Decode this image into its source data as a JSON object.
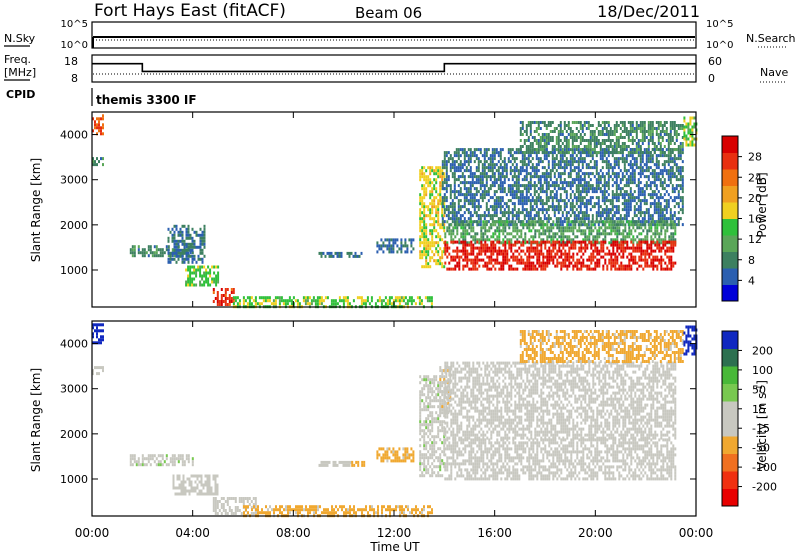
{
  "header": {
    "station": "Fort Hays East (fitACF)",
    "beam": "Beam 06",
    "date": "18/Dec/2011"
  },
  "top_panel": {
    "left_label": "N.Sky",
    "right_label": "N.Search",
    "left_ticks": [
      "10^5",
      "10^0"
    ],
    "right_ticks": [
      "10^5",
      "10^0"
    ]
  },
  "freq_panel": {
    "left_label_1": "Freq.",
    "left_label_2": "[MHz]",
    "right_label": "Nave",
    "left_ticks": [
      "18",
      "8"
    ],
    "right_ticks": [
      "60",
      "0"
    ],
    "freq_steps": [
      {
        "from_h": 0.0,
        "to_h": 2.0,
        "mhz": 15.5
      },
      {
        "from_h": 2.0,
        "to_h": 14.0,
        "mhz": 11.5
      },
      {
        "from_h": 14.0,
        "to_h": 24.0,
        "mhz": 15.5
      }
    ],
    "nave_level": 8
  },
  "cpid": {
    "label": "CPID",
    "program": "themis 3300 IF"
  },
  "x_axis": {
    "label": "Time UT",
    "ticks": [
      "00:00",
      "04:00",
      "08:00",
      "12:00",
      "16:00",
      "20:00",
      "00:00"
    ],
    "range_h": [
      0,
      24
    ]
  },
  "chart_data": [
    {
      "type": "heatmap",
      "name": "power",
      "ylabel": "Slant Range [km]",
      "yticks": [
        "4000",
        "3000",
        "2000",
        "1000"
      ],
      "ylim": [
        180,
        4500
      ],
      "colorbar": {
        "label": "Power [dB]",
        "ticks": [
          "28",
          "24",
          "20",
          "16",
          "12",
          "8",
          "4"
        ],
        "range": [
          0,
          30
        ],
        "colors": [
          "#0000d8",
          "#2b5fb0",
          "#3d8060",
          "#5aa658",
          "#2fc03a",
          "#f0d020",
          "#f0a020",
          "#f07010",
          "#e83010",
          "#d80000"
        ]
      },
      "regions": [
        {
          "t0": 0.0,
          "t1": 0.4,
          "r0": 4000,
          "r1": 4450,
          "v": 24
        },
        {
          "t0": 0.0,
          "t1": 0.4,
          "r0": 3350,
          "r1": 3500,
          "v": 8
        },
        {
          "t0": 1.5,
          "t1": 4.0,
          "r0": 1300,
          "r1": 1550,
          "v": 8
        },
        {
          "t0": 3.0,
          "t1": 4.5,
          "r0": 1200,
          "r1": 2000,
          "v": 6
        },
        {
          "t0": 3.7,
          "t1": 5.0,
          "r0": 700,
          "r1": 1100,
          "v": 14
        },
        {
          "t0": 4.8,
          "t1": 5.6,
          "r0": 250,
          "r1": 600,
          "v": 26
        },
        {
          "t0": 5.6,
          "t1": 13.5,
          "r0": 220,
          "r1": 420,
          "v": 14
        },
        {
          "t0": 9.0,
          "t1": 10.7,
          "r0": 1280,
          "r1": 1400,
          "v": 6
        },
        {
          "t0": 11.3,
          "t1": 12.8,
          "r0": 1400,
          "r1": 1700,
          "v": 6
        },
        {
          "t0": 13.0,
          "t1": 14.0,
          "r0": 1100,
          "r1": 3300,
          "v": 16
        },
        {
          "t0": 13.9,
          "t1": 23.5,
          "r0": 2000,
          "r1": 3700,
          "v": 6
        },
        {
          "t0": 14.0,
          "t1": 23.2,
          "r0": 1600,
          "r1": 2100,
          "v": 10
        },
        {
          "t0": 14.0,
          "t1": 23.2,
          "r0": 1050,
          "r1": 1650,
          "v": 27
        },
        {
          "t0": 17.0,
          "t1": 23.5,
          "r0": 3600,
          "r1": 4300,
          "v": 8
        },
        {
          "t0": 23.5,
          "t1": 24.0,
          "r0": 3800,
          "r1": 4400,
          "v": 14
        }
      ]
    },
    {
      "type": "heatmap",
      "name": "velocity",
      "ylabel": "Slant Range [km]",
      "yticks": [
        "4000",
        "3000",
        "2000",
        "1000"
      ],
      "ylim": [
        180,
        4500
      ],
      "colorbar": {
        "label": "Velocity [m s^-1]",
        "ticks": [
          "200",
          "100",
          "50",
          "15",
          "-15",
          "-50",
          "-100",
          "-200"
        ],
        "range": [
          -250,
          250
        ],
        "colors": [
          "#e80000",
          "#f03010",
          "#f07020",
          "#f0a830",
          "#c8c8c0",
          "#c8c8c0",
          "#78c850",
          "#48b838",
          "#2c7050",
          "#1028c0"
        ]
      },
      "ground_scatter_color": "#c8c8c0",
      "regions": [
        {
          "t0": 0.0,
          "t1": 0.4,
          "r0": 4000,
          "r1": 4450,
          "v": 220
        },
        {
          "t0": 0.0,
          "t1": 0.4,
          "r0": 3350,
          "r1": 3500,
          "v": 0
        },
        {
          "t0": 1.5,
          "t1": 4.0,
          "r0": 1300,
          "r1": 1550,
          "v": 40
        },
        {
          "t0": 3.2,
          "t1": 5.0,
          "r0": 700,
          "r1": 1100,
          "v": 0
        },
        {
          "t0": 4.8,
          "t1": 6.5,
          "r0": 250,
          "r1": 600,
          "v": 30
        },
        {
          "t0": 6.0,
          "t1": 13.5,
          "r0": 220,
          "r1": 420,
          "v": -60
        },
        {
          "t0": 9.0,
          "t1": 10.3,
          "r0": 1280,
          "r1": 1400,
          "v": 0
        },
        {
          "t0": 10.3,
          "t1": 10.8,
          "r0": 1300,
          "r1": 1400,
          "v": -60
        },
        {
          "t0": 11.3,
          "t1": 12.8,
          "r0": 1400,
          "r1": 1700,
          "v": -60
        },
        {
          "t0": 13.0,
          "t1": 14.0,
          "r0": 1100,
          "r1": 3300,
          "v": 40
        },
        {
          "t0": 13.8,
          "t1": 14.2,
          "r0": 2500,
          "r1": 3500,
          "v": -40
        },
        {
          "t0": 14.0,
          "t1": 23.2,
          "r0": 1900,
          "r1": 3600,
          "v": 0
        },
        {
          "t0": 14.0,
          "t1": 23.2,
          "r0": 1000,
          "r1": 1900,
          "v": 0
        },
        {
          "t0": 17.0,
          "t1": 23.5,
          "r0": 3600,
          "r1": 4300,
          "v": -60
        },
        {
          "t0": 23.5,
          "t1": 24.0,
          "r0": 3800,
          "r1": 4400,
          "v": 220
        }
      ]
    }
  ]
}
